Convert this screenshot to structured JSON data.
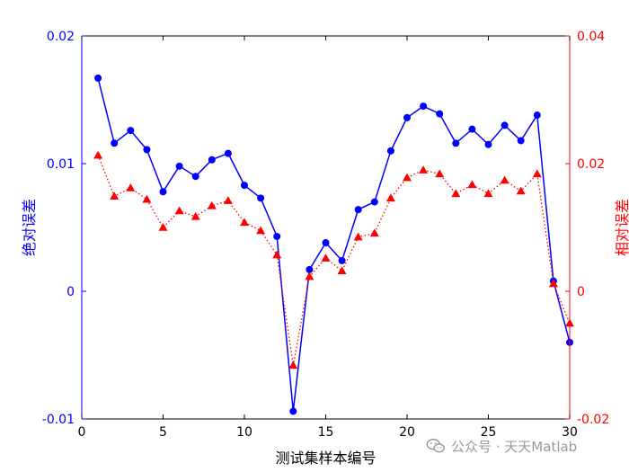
{
  "chart_data": {
    "type": "line",
    "xlabel": "测试集样本编号",
    "ylabel_left": "绝对误差",
    "ylabel_right": "相对误差",
    "xlim": [
      0,
      30
    ],
    "ylim_left": [
      -0.01,
      0.02
    ],
    "ylim_right": [
      -0.02,
      0.04
    ],
    "x_ticks": [
      "0",
      "5",
      "10",
      "15",
      "20",
      "25",
      "30"
    ],
    "y_left_ticks": [
      "-0.01",
      "0",
      "0.01",
      "0.02"
    ],
    "y_right_ticks": [
      "-0.02",
      "0",
      "0.02",
      "0.04"
    ],
    "grid": false,
    "colors": {
      "left": "#0000ff",
      "right": "#ff0000"
    },
    "x": [
      1,
      2,
      3,
      4,
      5,
      6,
      7,
      8,
      9,
      10,
      11,
      12,
      13,
      14,
      15,
      16,
      17,
      18,
      19,
      20,
      21,
      22,
      23,
      24,
      25,
      26,
      27,
      28,
      29,
      30
    ],
    "series": [
      {
        "axis": "left",
        "marker": "circle",
        "style": "solid",
        "color": "#0000ff",
        "values": [
          0.0167,
          0.0116,
          0.0126,
          0.0111,
          0.0078,
          0.0098,
          0.009,
          0.0103,
          0.0108,
          0.0083,
          0.0073,
          0.0043,
          -0.0094,
          0.0017,
          0.0038,
          0.0024,
          0.0064,
          0.007,
          0.011,
          0.0136,
          0.0145,
          0.0139,
          0.0116,
          0.0127,
          0.0115,
          0.013,
          0.0118,
          0.0138,
          0.0008,
          -0.004
        ]
      },
      {
        "axis": "right",
        "marker": "triangle",
        "style": "dotted",
        "color": "#ff0000",
        "values": [
          0.0213,
          0.0149,
          0.0162,
          0.0144,
          0.01,
          0.0126,
          0.0117,
          0.0134,
          0.0142,
          0.0108,
          0.0095,
          0.0057,
          -0.0116,
          0.0023,
          0.0052,
          0.0032,
          0.0085,
          0.0091,
          0.0146,
          0.0178,
          0.019,
          0.0184,
          0.0153,
          0.0167,
          0.0153,
          0.0174,
          0.0157,
          0.0184,
          0.0012,
          -0.005
        ]
      }
    ]
  },
  "watermark": {
    "text": "公众号 · 天天Matlab",
    "icon": "wechat-icon"
  }
}
